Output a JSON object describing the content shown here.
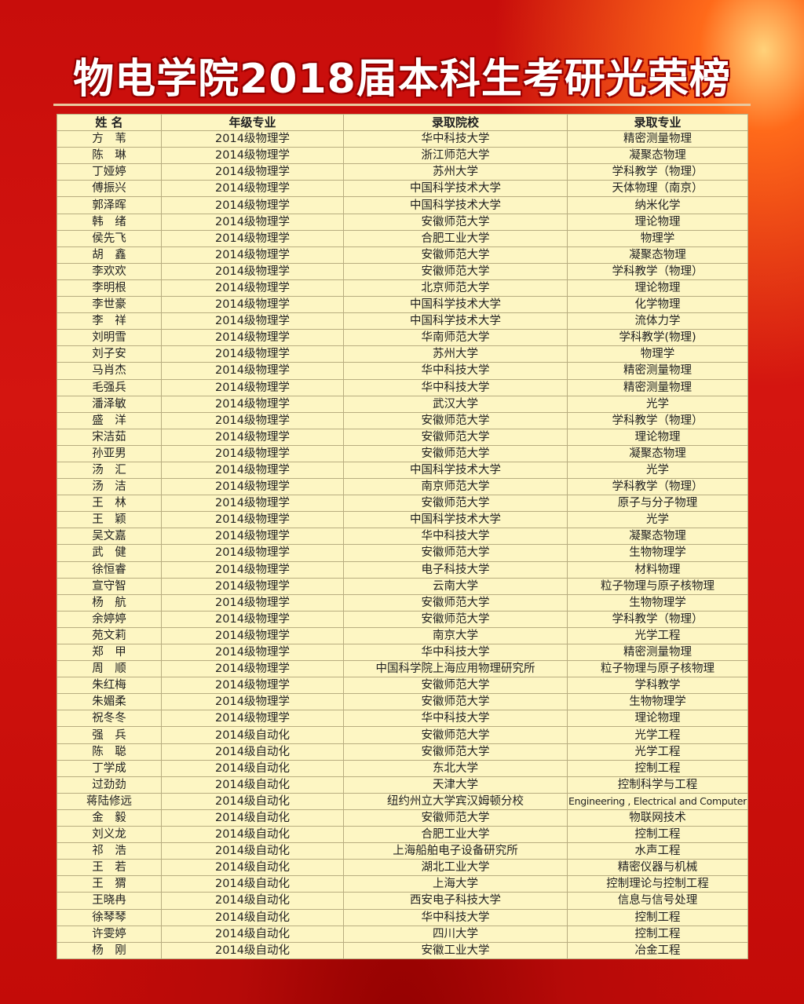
{
  "title": "物电学院2018届本科生考研光荣榜",
  "table": {
    "headers": [
      "姓 名",
      "年级专业",
      "录取院校",
      "录取专业"
    ],
    "rows": [
      [
        "方　苇",
        "2014级物理学",
        "华中科技大学",
        "精密测量物理"
      ],
      [
        "陈　琳",
        "2014级物理学",
        "浙江师范大学",
        "凝聚态物理"
      ],
      [
        "丁娅婷",
        "2014级物理学",
        "苏州大学",
        "学科教学（物理）"
      ],
      [
        "傅振兴",
        "2014级物理学",
        "中国科学技术大学",
        "天体物理（南京）"
      ],
      [
        "郭泽晖",
        "2014级物理学",
        "中国科学技术大学",
        "纳米化学"
      ],
      [
        "韩　绪",
        "2014级物理学",
        "安徽师范大学",
        "理论物理"
      ],
      [
        "侯先飞",
        "2014级物理学",
        "合肥工业大学",
        "物理学"
      ],
      [
        "胡　鑫",
        "2014级物理学",
        "安徽师范大学",
        "凝聚态物理"
      ],
      [
        "李欢欢",
        "2014级物理学",
        "安徽师范大学",
        "学科教学（物理）"
      ],
      [
        "李明根",
        "2014级物理学",
        "北京师范大学",
        "理论物理"
      ],
      [
        "李世豪",
        "2014级物理学",
        "中国科学技术大学",
        "化学物理"
      ],
      [
        "李　祥",
        "2014级物理学",
        "中国科学技术大学",
        "流体力学"
      ],
      [
        "刘明雪",
        "2014级物理学",
        "华南师范大学",
        "学科教学(物理)"
      ],
      [
        "刘子安",
        "2014级物理学",
        "苏州大学",
        "物理学"
      ],
      [
        "马肖杰",
        "2014级物理学",
        "华中科技大学",
        "精密测量物理"
      ],
      [
        "毛强兵",
        "2014级物理学",
        "华中科技大学",
        "精密测量物理"
      ],
      [
        "潘泽敏",
        "2014级物理学",
        "武汉大学",
        "光学"
      ],
      [
        "盛　洋",
        "2014级物理学",
        "安徽师范大学",
        "学科教学（物理）"
      ],
      [
        "宋洁茹",
        "2014级物理学",
        "安徽师范大学",
        "理论物理"
      ],
      [
        "孙亚男",
        "2014级物理学",
        "安徽师范大学",
        "凝聚态物理"
      ],
      [
        "汤　汇",
        "2014级物理学",
        "中国科学技术大学",
        "光学"
      ],
      [
        "汤　洁",
        "2014级物理学",
        "南京师范大学",
        "学科教学（物理）"
      ],
      [
        "王　林",
        "2014级物理学",
        "安徽师范大学",
        "原子与分子物理"
      ],
      [
        "王　颖",
        "2014级物理学",
        "中国科学技术大学",
        "光学"
      ],
      [
        "吴文嘉",
        "2014级物理学",
        "华中科技大学",
        "凝聚态物理"
      ],
      [
        "武　健",
        "2014级物理学",
        "安徽师范大学",
        "生物物理学"
      ],
      [
        "徐恒睿",
        "2014级物理学",
        "电子科技大学",
        "材料物理"
      ],
      [
        "宣守智",
        "2014级物理学",
        "云南大学",
        "粒子物理与原子核物理"
      ],
      [
        "杨　航",
        "2014级物理学",
        "安徽师范大学",
        "生物物理学"
      ],
      [
        "余婷婷",
        "2014级物理学",
        "安徽师范大学",
        "学科教学（物理）"
      ],
      [
        "苑文莉",
        "2014级物理学",
        "南京大学",
        "光学工程"
      ],
      [
        "郑　甲",
        "2014级物理学",
        "华中科技大学",
        "精密测量物理"
      ],
      [
        "周　顺",
        "2014级物理学",
        "中国科学院上海应用物理研究所",
        "粒子物理与原子核物理"
      ],
      [
        "朱红梅",
        "2014级物理学",
        "安徽师范大学",
        "学科教学"
      ],
      [
        "朱媚柔",
        "2014级物理学",
        "安徽师范大学",
        "生物物理学"
      ],
      [
        "祝冬冬",
        "2014级物理学",
        "华中科技大学",
        "理论物理"
      ],
      [
        "强　兵",
        "2014级自动化",
        "安徽师范大学",
        "光学工程"
      ],
      [
        "陈　聪",
        "2014级自动化",
        "安徽师范大学",
        "光学工程"
      ],
      [
        "丁学成",
        "2014级自动化",
        "东北大学",
        "控制工程"
      ],
      [
        "过劲劲",
        "2014级自动化",
        "天津大学",
        "控制科学与工程"
      ],
      [
        "蒋陆修远",
        "2014级自动化",
        "纽约州立大学宾汉姆顿分校",
        "Engineering , Electrical and Computer"
      ],
      [
        "金　毅",
        "2014级自动化",
        "安徽师范大学",
        "物联网技术"
      ],
      [
        "刘义龙",
        "2014级自动化",
        "合肥工业大学",
        "控制工程"
      ],
      [
        "祁　浩",
        "2014级自动化",
        "上海船舶电子设备研究所",
        "水声工程"
      ],
      [
        "王　若",
        "2014级自动化",
        "湖北工业大学",
        "精密仪器与机械"
      ],
      [
        "王　猬",
        "2014级自动化",
        "上海大学",
        "控制理论与控制工程"
      ],
      [
        "王晓冉",
        "2014级自动化",
        "西安电子科技大学",
        "信息与信号处理"
      ],
      [
        "徐琴琴",
        "2014级自动化",
        "华中科技大学",
        "控制工程"
      ],
      [
        "许雯婷",
        "2014级自动化",
        "四川大学",
        "控制工程"
      ],
      [
        "杨　刚",
        "2014级自动化",
        "安徽工业大学",
        "冶金工程"
      ]
    ]
  }
}
